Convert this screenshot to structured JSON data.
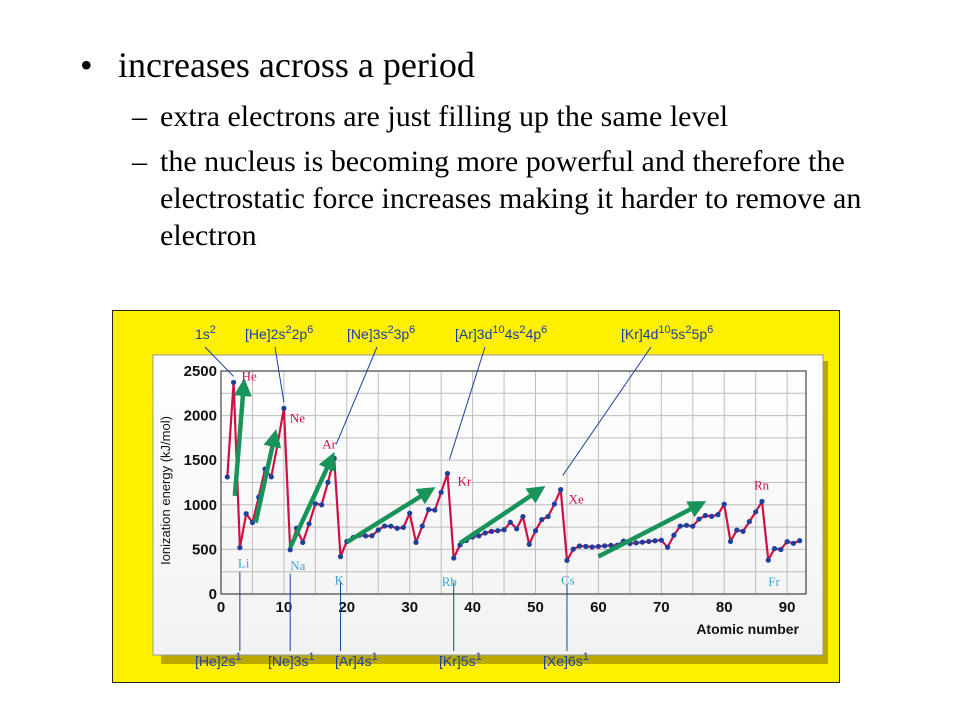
{
  "slide": {
    "bullet": "increases across a period",
    "subbullets": [
      "extra electrons are just filling up the same level",
      "the nucleus is becoming more powerful and therefore the electrostatic force increases making it harder to remove an electron"
    ]
  },
  "colors": {
    "panel": "#fff000",
    "series_line": "#cc1144",
    "points": "#1c3fa0",
    "trend_arrows": "#18935a",
    "maxima_labels": "#cc1144",
    "minima_labels": "#3aa6d4",
    "config_labels": "#1c3fa0"
  },
  "chart_data": {
    "type": "line",
    "title": "",
    "xlabel": "Atomic number",
    "ylabel": "Ionization energy (kJ/mol)",
    "xlim": [
      0,
      93
    ],
    "ylim": [
      0,
      2500
    ],
    "xticks": [
      "0",
      "10",
      "20",
      "30",
      "40",
      "50",
      "60",
      "70",
      "80",
      "90"
    ],
    "yticks": [
      "0",
      "500",
      "1000",
      "1500",
      "2000",
      "2500"
    ],
    "grid": true,
    "series": [
      {
        "x": [
          1,
          2,
          3,
          4,
          5,
          6,
          7,
          8,
          9,
          10,
          11,
          12,
          13,
          14,
          15,
          16,
          17,
          18,
          19,
          20,
          21,
          22,
          23,
          24,
          25,
          26,
          27,
          28,
          29,
          30,
          31,
          32,
          33,
          34,
          35,
          36,
          37,
          38,
          39,
          40,
          41,
          42,
          43,
          44,
          45,
          46,
          47,
          48,
          49,
          50,
          51,
          52,
          53,
          54,
          55,
          56,
          57,
          58,
          59,
          60,
          61,
          62,
          63,
          64,
          65,
          66,
          67,
          68,
          69,
          70,
          71,
          72,
          73,
          74,
          75,
          76,
          77,
          78,
          79,
          80,
          81,
          82,
          83,
          84,
          85,
          86,
          87,
          88,
          89,
          90,
          91,
          92
        ],
        "y": [
          1312,
          2372,
          520,
          900,
          801,
          1086,
          1402,
          1314,
          1681,
          2081,
          496,
          738,
          578,
          787,
          1012,
          1000,
          1251,
          1521,
          419,
          590,
          633,
          659,
          651,
          653,
          717,
          762,
          760,
          737,
          746,
          906,
          579,
          762,
          947,
          941,
          1140,
          1351,
          403,
          550,
          600,
          640,
          652,
          684,
          702,
          710,
          720,
          804,
          731,
          868,
          558,
          709,
          834,
          869,
          1008,
          1170,
          376,
          503,
          538,
          534,
          527,
          533,
          540,
          545,
          547,
          593,
          566,
          573,
          581,
          589,
          597,
          603,
          524,
          659,
          761,
          770,
          760,
          840,
          880,
          870,
          890,
          1007,
          589,
          716,
          703,
          812,
          920,
          1037,
          380,
          509,
          499,
          587,
          568,
          598
        ]
      }
    ],
    "maxima_labels": [
      "He",
      "Ne",
      "Ar",
      "Kr",
      "Xe",
      "Rn"
    ],
    "minima_labels": [
      "Li",
      "Na",
      "K",
      "Rb",
      "Cs",
      "Fr"
    ],
    "top_configurations": [
      {
        "prefix": "1s",
        "sup": "2",
        "tail": "",
        "sup2": "",
        "tail2": ""
      },
      {
        "prefix": "[He]2s",
        "sup": "2",
        "tail": "2p",
        "sup2": "6",
        "tail2": ""
      },
      {
        "prefix": "[Ne]3s",
        "sup": "2",
        "tail": "3p",
        "sup2": "6",
        "tail2": ""
      },
      {
        "prefix": "[Ar]3d",
        "sup": "10",
        "tail": "4s",
        "sup2": "2",
        "tail2": "4p",
        "sup3": "6"
      },
      {
        "prefix": "[Kr]4d",
        "sup": "10",
        "tail": "5s",
        "sup2": "2",
        "tail2": "5p",
        "sup3": "6"
      }
    ],
    "bottom_configurations": [
      {
        "prefix": "[He]2s",
        "sup": "1"
      },
      {
        "prefix": "[Ne]3s",
        "sup": "1"
      },
      {
        "prefix": "[Ar]4s",
        "sup": "1"
      },
      {
        "prefix": "[Kr]5s",
        "sup": "1"
      },
      {
        "prefix": "[Xe]6s",
        "sup": "1"
      }
    ],
    "trend_arrows": [
      {
        "from": [
          2.2,
          1100
        ],
        "to": [
          3.6,
          2330
        ]
      },
      {
        "from": [
          5.5,
          800
        ],
        "to": [
          8.5,
          1760
        ]
      },
      {
        "from": [
          11,
          520
        ],
        "to": [
          17.5,
          1510
        ]
      },
      {
        "from": [
          20,
          580
        ],
        "to": [
          33,
          1150
        ]
      },
      {
        "from": [
          38,
          570
        ],
        "to": [
          50.5,
          1160
        ]
      },
      {
        "from": [
          60,
          420
        ],
        "to": [
          76,
          1000
        ]
      }
    ]
  }
}
